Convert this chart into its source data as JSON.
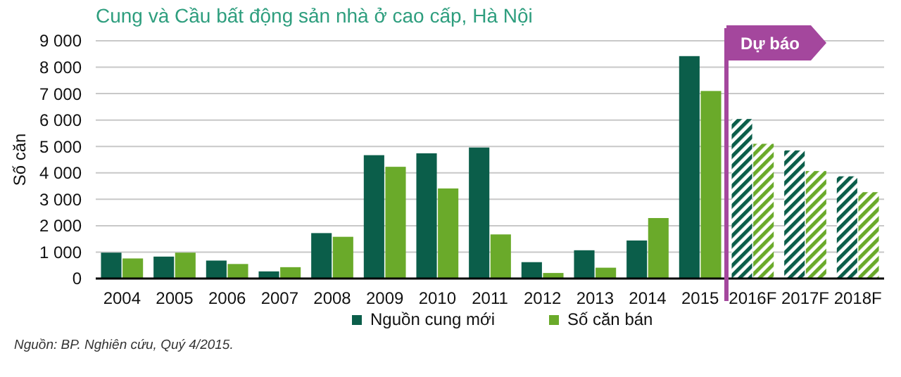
{
  "chart_data": {
    "type": "bar",
    "title": "Cung và Cầu bất động sản nhà ở cao cấp, Hà Nội",
    "ylabel": "Số căn",
    "categories": [
      "2004",
      "2005",
      "2006",
      "2007",
      "2008",
      "2009",
      "2010",
      "2011",
      "2012",
      "2013",
      "2014",
      "2015",
      "2016F",
      "2017F",
      "2018F"
    ],
    "series": [
      {
        "name": "Nguồn cung mới",
        "color": "#0b5e4a",
        "values": [
          980,
          830,
          680,
          270,
          1720,
          4670,
          4740,
          4960,
          620,
          1070,
          1440,
          8420,
          6040,
          4850,
          3870
        ]
      },
      {
        "name": "Số căn bán",
        "color": "#6aaa2a",
        "values": [
          760,
          980,
          550,
          430,
          1580,
          4230,
          3410,
          1670,
          210,
          410,
          2290,
          7100,
          5100,
          4070,
          3270
        ]
      }
    ],
    "ylim": [
      0,
      9000
    ],
    "yticks": [
      0,
      {
        "value": 1000,
        "label": "1 000"
      },
      {
        "value": 2000,
        "label": "2 000"
      },
      {
        "value": 3000,
        "label": "3 000"
      },
      {
        "value": 4000,
        "label": "4 000"
      },
      {
        "value": 5000,
        "label": "5 000"
      },
      {
        "value": 6000,
        "label": "6 000"
      },
      {
        "value": 7000,
        "label": "7 000"
      },
      {
        "value": 8000,
        "label": "8 000"
      },
      {
        "value": 9000,
        "label": "9 000"
      }
    ],
    "grid": "y",
    "legend": "bottom",
    "ref_lines": [
      {
        "axis": "x",
        "value": "2016F",
        "label": "Dự báo",
        "color": "#a4479d"
      }
    ],
    "annotations": [
      "Nguồn: BP. Nghiên cứu, Quý 4/2015."
    ]
  }
}
